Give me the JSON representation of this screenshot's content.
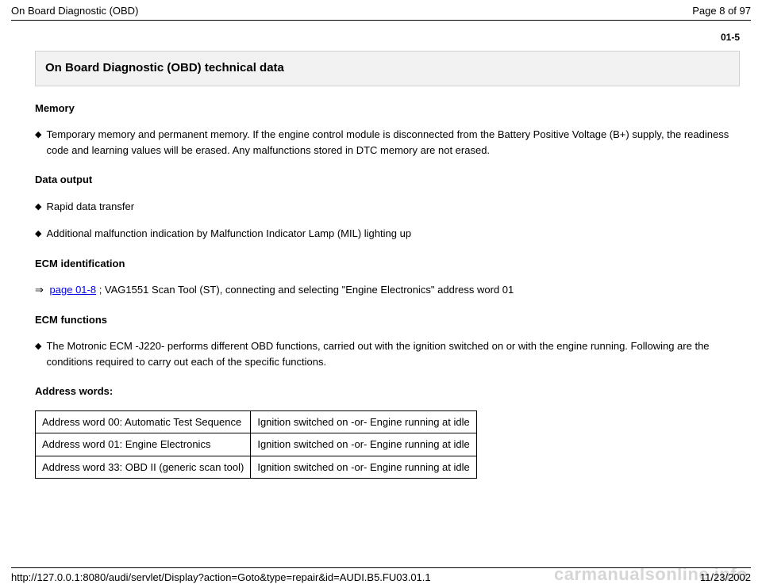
{
  "header": {
    "doc_title": "On Board Diagnostic (OBD)",
    "page_label": "Page 8 of 97"
  },
  "section_number": "01-5",
  "title": "On Board Diagnostic (OBD) technical data",
  "memory": {
    "heading": "Memory",
    "items": [
      "Temporary memory and permanent memory. If the engine control module is disconnected from the Battery Positive Voltage (B+) supply, the readiness code and learning values will be erased. Any malfunctions stored in DTC memory are not erased."
    ]
  },
  "data_output": {
    "heading": "Data output",
    "items": [
      "Rapid data transfer",
      "Additional malfunction indication by Malfunction Indicator Lamp (MIL) lighting up"
    ]
  },
  "ecm_identification": {
    "heading": "ECM identification",
    "arrow_glyph": "⇒",
    "link_text": "page 01-8",
    "after_link": " ; VAG1551 Scan Tool (ST), connecting and selecting \"Engine Electronics\" address word 01"
  },
  "ecm_functions": {
    "heading": "ECM functions",
    "items": [
      "The Motronic ECM -J220- performs different OBD functions, carried out with the ignition switched on or with the engine running. Following are the conditions required to carry out each of the specific functions."
    ]
  },
  "address_words": {
    "heading": "Address words:",
    "rows": [
      [
        "Address word 00: Automatic Test Sequence",
        "Ignition switched on -or- Engine running at idle"
      ],
      [
        "Address word 01: Engine Electronics",
        "Ignition switched on -or- Engine running at idle"
      ],
      [
        "Address word 33: OBD II (generic scan tool)",
        "Ignition switched on -or- Engine running at idle"
      ]
    ]
  },
  "footer": {
    "url": "http://127.0.0.1:8080/audi/servlet/Display?action=Goto&type=repair&id=AUDI.B5.FU03.01.1",
    "date": "11/23/2002"
  },
  "watermark": "carmanualsonline.info",
  "colors": {
    "text": "#000000",
    "background": "#ffffff",
    "title_bg": "#f2f2f2",
    "title_border": "#d0d0d0",
    "link": "#0000ee",
    "watermark": "#d6d6d6"
  }
}
